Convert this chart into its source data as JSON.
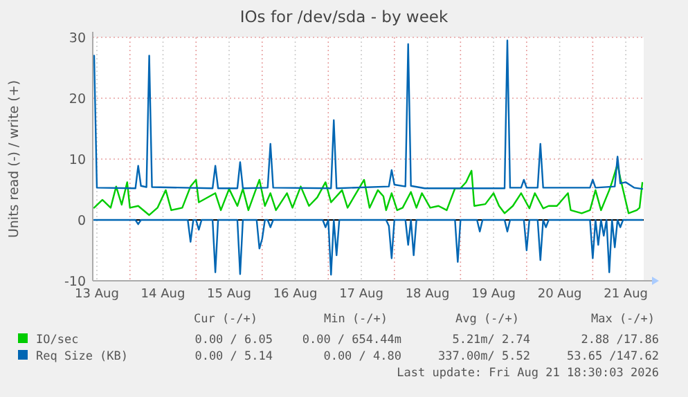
{
  "chart_data": {
    "type": "line",
    "title": "IOs for /dev/sda - by week",
    "ylabel": "Units read (-) / write (+)",
    "xlim": [
      "2026-08-13T10:30",
      "2026-08-21T18:30"
    ],
    "xticks": [
      {
        "value": "2026-08-13T12:00",
        "label": "13 Aug"
      },
      {
        "value": "2026-08-14T00:00",
        "label": null
      },
      {
        "value": "2026-08-14T12:00",
        "label": "14 Aug"
      },
      {
        "value": "2026-08-15T00:00",
        "label": null
      },
      {
        "value": "2026-08-15T12:00",
        "label": "15 Aug"
      },
      {
        "value": "2026-08-16T00:00",
        "label": null
      },
      {
        "value": "2026-08-16T12:00",
        "label": "16 Aug"
      },
      {
        "value": "2026-08-17T00:00",
        "label": null
      },
      {
        "value": "2026-08-17T12:00",
        "label": "17 Aug"
      },
      {
        "value": "2026-08-18T00:00",
        "label": null
      },
      {
        "value": "2026-08-18T12:00",
        "label": "18 Aug"
      },
      {
        "value": "2026-08-19T00:00",
        "label": null
      },
      {
        "value": "2026-08-19T12:00",
        "label": "19 Aug"
      },
      {
        "value": "2026-08-20T00:00",
        "label": null
      },
      {
        "value": "2026-08-20T12:00",
        "label": "20 Aug"
      },
      {
        "value": "2026-08-21T00:00",
        "label": null
      },
      {
        "value": "2026-08-21T12:00",
        "label": "21 Aug"
      }
    ],
    "ylim": [
      -10,
      30
    ],
    "yticks": [
      -10,
      0,
      10,
      20,
      30
    ],
    "grid": true,
    "legend": "bottom left",
    "marker": "none",
    "line_style": "solid",
    "ref_lines": [
      {
        "axis": "y",
        "value": 0,
        "color": "#000000"
      }
    ],
    "series": [
      {
        "name": "IO/sec",
        "color": "#00cc00",
        "x": [
          "2026-08-13T11:00",
          "2026-08-13T14:00",
          "2026-08-13T17:00",
          "2026-08-13T19:00",
          "2026-08-13T21:00",
          "2026-08-13T23:00",
          "2026-08-14T00:00",
          "2026-08-14T03:00",
          "2026-08-14T07:00",
          "2026-08-14T10:00",
          "2026-08-14T13:00",
          "2026-08-14T15:00",
          "2026-08-14T19:00",
          "2026-08-14T22:00",
          "2026-08-15T00:00",
          "2026-08-15T01:00",
          "2026-08-15T07:00",
          "2026-08-15T09:00",
          "2026-08-15T12:00",
          "2026-08-15T15:00",
          "2026-08-15T17:00",
          "2026-08-15T19:00",
          "2026-08-15T23:00",
          "2026-08-16T01:00",
          "2026-08-16T03:00",
          "2026-08-16T05:00",
          "2026-08-16T09:00",
          "2026-08-16T11:00",
          "2026-08-16T14:00",
          "2026-08-16T17:00",
          "2026-08-16T20:00",
          "2026-08-16T23:00",
          "2026-08-17T01:00",
          "2026-08-17T05:00",
          "2026-08-17T07:00",
          "2026-08-17T13:00",
          "2026-08-17T15:00",
          "2026-08-17T18:00",
          "2026-08-17T20:00",
          "2026-08-17T21:00",
          "2026-08-17T23:00",
          "2026-08-18T01:00",
          "2026-08-18T03:00",
          "2026-08-18T06:00",
          "2026-08-18T08:00",
          "2026-08-18T10:00",
          "2026-08-18T13:00",
          "2026-08-18T16:00",
          "2026-08-18T19:00",
          "2026-08-18T22:00",
          "2026-08-19T00:00",
          "2026-08-19T02:00",
          "2026-08-19T04:00",
          "2026-08-19T05:00",
          "2026-08-19T09:00",
          "2026-08-19T12:00",
          "2026-08-19T14:00",
          "2026-08-19T16:00",
          "2026-08-19T19:00",
          "2026-08-19T22:00",
          "2026-08-20T01:00",
          "2026-08-20T03:00",
          "2026-08-20T06:00",
          "2026-08-20T08:00",
          "2026-08-20T11:00",
          "2026-08-20T15:00",
          "2026-08-20T16:00",
          "2026-08-20T20:00",
          "2026-08-20T23:00",
          "2026-08-21T01:00",
          "2026-08-21T03:00",
          "2026-08-21T06:00",
          "2026-08-21T07:00",
          "2026-08-21T09:00",
          "2026-08-21T10:00",
          "2026-08-21T13:00",
          "2026-08-21T16:00",
          "2026-08-21T17:00",
          "2026-08-21T18:00"
        ],
        "values": [
          2.0,
          3.3,
          2.0,
          5.5,
          2.5,
          6.2,
          2.0,
          2.3,
          0.8,
          2.0,
          4.9,
          1.6,
          2.0,
          5.5,
          6.6,
          2.9,
          4.4,
          1.6,
          5.1,
          2.3,
          5.1,
          1.6,
          6.6,
          2.3,
          4.4,
          1.6,
          4.4,
          2.0,
          5.5,
          2.3,
          3.7,
          6.2,
          2.9,
          4.9,
          2.0,
          6.6,
          2.0,
          4.9,
          3.9,
          1.6,
          4.4,
          1.6,
          2.0,
          4.6,
          2.0,
          4.4,
          2.0,
          2.3,
          1.6,
          5.2,
          5.2,
          6.2,
          8.1,
          2.3,
          2.6,
          4.4,
          2.3,
          1.1,
          2.3,
          4.4,
          1.9,
          4.4,
          1.9,
          2.3,
          2.3,
          4.4,
          1.6,
          1.1,
          1.6,
          4.9,
          1.6,
          4.9,
          6.2,
          9.2,
          6.9,
          1.1,
          1.6,
          2.0,
          6.1
        ]
      },
      {
        "name": "Req Size (KB)",
        "color": "#0066b3",
        "x": [
          "2026-08-13T11:00",
          "2026-08-13T12:00",
          "2026-08-14T02:00",
          "2026-08-14T03:00",
          "2026-08-14T04:00",
          "2026-08-14T06:00",
          "2026-08-14T07:00",
          "2026-08-14T08:00",
          "2026-08-15T06:00",
          "2026-08-15T07:00",
          "2026-08-15T08:00",
          "2026-08-15T15:00",
          "2026-08-15T16:00",
          "2026-08-15T17:00",
          "2026-08-16T02:00",
          "2026-08-16T03:00",
          "2026-08-16T04:00",
          "2026-08-17T01:00",
          "2026-08-17T02:00",
          "2026-08-17T03:00",
          "2026-08-17T22:00",
          "2026-08-17T23:00",
          "2026-08-18T00:00",
          "2026-08-18T04:00",
          "2026-08-18T05:00",
          "2026-08-18T06:00",
          "2026-08-18T11:00",
          "2026-08-19T16:00",
          "2026-08-19T17:00",
          "2026-08-19T18:00",
          "2026-08-19T22:00",
          "2026-08-19T23:00",
          "2026-08-20T00:00",
          "2026-08-20T04:00",
          "2026-08-20T05:00",
          "2026-08-20T06:00",
          "2026-08-20T23:00",
          "2026-08-21T00:00",
          "2026-08-21T01:00",
          "2026-08-21T08:00",
          "2026-08-21T09:00",
          "2026-08-21T10:00",
          "2026-08-21T12:00",
          "2026-08-21T15:00",
          "2026-08-21T18:00"
        ],
        "values": [
          27,
          5.3,
          5.2,
          8.9,
          5.6,
          5.4,
          27,
          5.4,
          5.2,
          8.9,
          5.2,
          5.2,
          9.5,
          5.2,
          5.3,
          12.5,
          5.3,
          5.2,
          16.4,
          5.2,
          5.5,
          8.2,
          5.8,
          5.5,
          28.9,
          5.6,
          5.2,
          5.2,
          29.5,
          5.3,
          5.3,
          6.6,
          5.3,
          5.3,
          12.5,
          5.3,
          5.3,
          6.6,
          5.3,
          5.5,
          10.4,
          6,
          6.2,
          5.3,
          5.1
        ]
      },
      {
        "color": "#0066b3",
        "x": [
          "2026-08-13T11:00",
          "2026-08-14T02:00",
          "2026-08-14T03:00",
          "2026-08-14T04:00",
          "2026-08-14T21:00",
          "2026-08-14T22:00",
          "2026-08-14T23:00",
          "2026-08-15T00:00",
          "2026-08-15T01:00",
          "2026-08-15T02:00",
          "2026-08-15T06:00",
          "2026-08-15T07:00",
          "2026-08-15T08:00",
          "2026-08-15T15:00",
          "2026-08-15T16:00",
          "2026-08-15T17:00",
          "2026-08-15T22:00",
          "2026-08-15T23:00",
          "2026-08-16T00:00",
          "2026-08-16T01:00",
          "2026-08-16T02:00",
          "2026-08-16T03:00",
          "2026-08-16T04:00",
          "2026-08-16T22:00",
          "2026-08-16T23:00",
          "2026-08-17T00:00",
          "2026-08-17T01:00",
          "2026-08-17T02:00",
          "2026-08-17T03:00",
          "2026-08-17T04:00",
          "2026-08-17T21:00",
          "2026-08-17T22:00",
          "2026-08-17T23:00",
          "2026-08-18T00:00",
          "2026-08-18T04:00",
          "2026-08-18T05:00",
          "2026-08-18T06:00",
          "2026-08-18T07:00",
          "2026-08-18T08:00",
          "2026-08-18T22:00",
          "2026-08-18T23:00",
          "2026-08-19T00:00",
          "2026-08-19T06:00",
          "2026-08-19T07:00",
          "2026-08-19T08:00",
          "2026-08-19T16:00",
          "2026-08-19T17:00",
          "2026-08-19T18:00",
          "2026-08-19T23:00",
          "2026-08-20T00:00",
          "2026-08-20T01:00",
          "2026-08-20T04:00",
          "2026-08-20T05:00",
          "2026-08-20T06:00",
          "2026-08-20T07:00",
          "2026-08-20T08:00",
          "2026-08-20T23:00",
          "2026-08-21T00:00",
          "2026-08-21T01:00",
          "2026-08-21T02:00",
          "2026-08-21T03:00",
          "2026-08-21T04:00",
          "2026-08-21T05:00",
          "2026-08-21T06:00",
          "2026-08-21T07:00",
          "2026-08-21T08:00",
          "2026-08-21T09:00",
          "2026-08-21T10:00",
          "2026-08-21T11:00",
          "2026-08-21T18:00"
        ],
        "values": [
          0,
          0,
          -0.7,
          0,
          0,
          -3.6,
          0,
          0,
          -1.6,
          0,
          0,
          -8.6,
          0,
          0,
          -8.9,
          0,
          0,
          -4.7,
          -3.1,
          0,
          0,
          -1.2,
          0,
          0,
          -1.2,
          0,
          -9,
          0,
          -5.8,
          0,
          0,
          -1,
          -6.3,
          0,
          0,
          -4.1,
          0,
          -5.8,
          0,
          0,
          -6.9,
          0,
          0,
          -1.9,
          0,
          0,
          -1.9,
          0,
          0,
          -5,
          0,
          0,
          -6.6,
          0,
          -1.2,
          0,
          0,
          -6.3,
          0,
          -4.1,
          0,
          -2.6,
          0,
          -8.6,
          0,
          -4.5,
          0,
          -1.2,
          0,
          0
        ]
      }
    ],
    "annotations": [
      "Cur (-/+)",
      "Min (-/+)",
      "Avg (-/+)",
      "Max (-/+)",
      "0.00 / 6.05",
      "0.00 / 654.44m",
      "5.21m/ 2.74",
      "2.88 /17.86",
      "0.00 / 5.14",
      "0.00 / 4.80",
      "337.00m/ 5.52",
      "53.65 /147.62",
      "Last update: Fri Aug 21 18:30:03 2026"
    ]
  }
}
